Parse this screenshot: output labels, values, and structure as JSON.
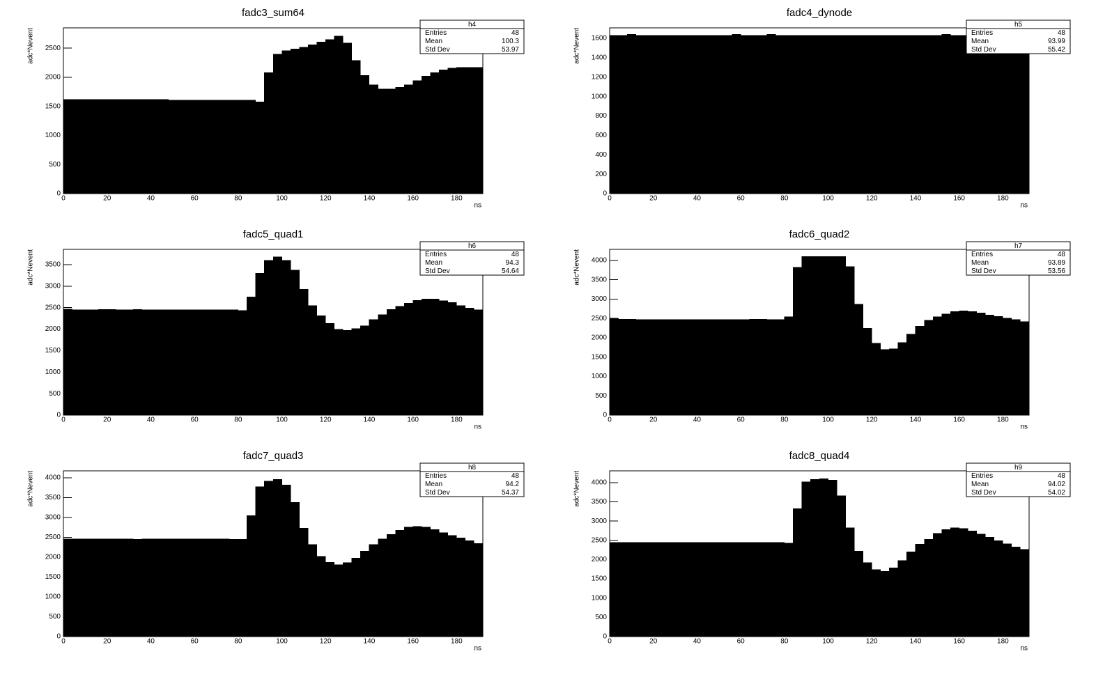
{
  "chart_data": [
    {
      "type": "histogram",
      "title": "fadc3_sum64",
      "xlabel": "ns",
      "ylabel": "adc*Nevent",
      "color": "#000000",
      "stats_title": "h4",
      "stats": [
        {
          "label": "Entries",
          "value": 48
        },
        {
          "label": "Mean",
          "value": 100.3
        },
        {
          "label": "Std Dev",
          "value": 53.97
        }
      ],
      "bins": [
        0,
        4,
        8,
        12,
        16,
        20,
        24,
        28,
        32,
        36,
        40,
        44,
        48,
        52,
        56,
        60,
        64,
        68,
        72,
        76,
        80,
        84,
        88,
        92,
        96,
        100,
        104,
        108,
        112,
        116,
        120,
        124,
        128,
        132,
        136,
        140,
        144,
        148,
        152,
        156,
        160,
        164,
        168,
        172,
        176,
        180,
        184,
        188,
        192
      ],
      "values": [
        1620,
        1620,
        1620,
        1620,
        1620,
        1620,
        1620,
        1620,
        1620,
        1620,
        1620,
        1620,
        1610,
        1610,
        1610,
        1610,
        1610,
        1610,
        1610,
        1610,
        1610,
        1610,
        1580,
        2080,
        2400,
        2460,
        2490,
        2520,
        2560,
        2610,
        2650,
        2710,
        2590,
        2290,
        2030,
        1870,
        1800,
        1800,
        1830,
        1870,
        1940,
        2020,
        2080,
        2130,
        2160,
        2170,
        2170,
        2170
      ],
      "xlim": [
        0,
        192
      ],
      "xticks": [
        0,
        20,
        40,
        60,
        80,
        100,
        120,
        140,
        160,
        180
      ],
      "ylim": [
        0,
        2850
      ],
      "yticks": [
        0,
        500,
        1000,
        1500,
        2000,
        2500
      ]
    },
    {
      "type": "histogram",
      "title": "fadc4_dynode",
      "xlabel": "ns",
      "ylabel": "adc*Nevent",
      "color": "#000000",
      "stats_title": "h5",
      "stats": [
        {
          "label": "Entries",
          "value": 48
        },
        {
          "label": "Mean",
          "value": 93.99
        },
        {
          "label": "Std Dev",
          "value": 55.42
        }
      ],
      "bins": [
        0,
        4,
        8,
        12,
        16,
        20,
        24,
        28,
        32,
        36,
        40,
        44,
        48,
        52,
        56,
        60,
        64,
        68,
        72,
        76,
        80,
        84,
        88,
        92,
        96,
        100,
        104,
        108,
        112,
        116,
        120,
        124,
        128,
        132,
        136,
        140,
        144,
        148,
        152,
        156,
        160,
        164,
        168,
        172,
        176,
        180,
        184,
        188,
        192
      ],
      "values": [
        1630,
        1630,
        1640,
        1630,
        1630,
        1630,
        1630,
        1630,
        1630,
        1630,
        1630,
        1630,
        1630,
        1630,
        1640,
        1630,
        1630,
        1630,
        1640,
        1630,
        1630,
        1630,
        1630,
        1630,
        1630,
        1630,
        1630,
        1630,
        1630,
        1630,
        1630,
        1630,
        1630,
        1630,
        1630,
        1630,
        1630,
        1630,
        1640,
        1630,
        1630,
        1630,
        1630,
        1630,
        1630,
        1630,
        1630,
        1630
      ],
      "xlim": [
        0,
        192
      ],
      "xticks": [
        0,
        20,
        40,
        60,
        80,
        100,
        120,
        140,
        160,
        180
      ],
      "ylim": [
        0,
        1708
      ],
      "yticks": [
        0,
        200,
        400,
        600,
        800,
        1000,
        1200,
        1400,
        1600
      ]
    },
    {
      "type": "histogram",
      "title": "fadc5_quad1",
      "xlabel": "ns",
      "ylabel": "adc*Nevent",
      "color": "#000000",
      "stats_title": "h6",
      "stats": [
        {
          "label": "Entries",
          "value": 48
        },
        {
          "label": "Mean",
          "value": 94.3
        },
        {
          "label": "Std Dev",
          "value": 54.64
        }
      ],
      "bins": [
        0,
        4,
        8,
        12,
        16,
        20,
        24,
        28,
        32,
        36,
        40,
        44,
        48,
        52,
        56,
        60,
        64,
        68,
        72,
        76,
        80,
        84,
        88,
        92,
        96,
        100,
        104,
        108,
        112,
        116,
        120,
        124,
        128,
        132,
        136,
        140,
        144,
        148,
        152,
        156,
        160,
        164,
        168,
        172,
        176,
        180,
        184,
        188,
        192
      ],
      "values": [
        2470,
        2450,
        2450,
        2450,
        2460,
        2460,
        2450,
        2450,
        2460,
        2450,
        2450,
        2450,
        2450,
        2450,
        2450,
        2450,
        2450,
        2450,
        2450,
        2450,
        2430,
        2750,
        3300,
        3600,
        3680,
        3600,
        3370,
        2930,
        2550,
        2310,
        2130,
        2000,
        1970,
        2010,
        2080,
        2220,
        2340,
        2460,
        2530,
        2600,
        2670,
        2700,
        2700,
        2660,
        2620,
        2550,
        2490,
        2450
      ],
      "xlim": [
        0,
        192
      ],
      "xticks": [
        0,
        20,
        40,
        60,
        80,
        100,
        120,
        140,
        160,
        180
      ],
      "ylim": [
        0,
        3855
      ],
      "yticks": [
        0,
        500,
        1000,
        1500,
        2000,
        2500,
        3000,
        3500
      ]
    },
    {
      "type": "histogram",
      "title": "fadc6_quad2",
      "xlabel": "ns",
      "ylabel": "adc*Nevent",
      "color": "#000000",
      "stats_title": "h7",
      "stats": [
        {
          "label": "Entries",
          "value": 48
        },
        {
          "label": "Mean",
          "value": 93.89
        },
        {
          "label": "Std Dev",
          "value": 53.56
        }
      ],
      "bins": [
        0,
        4,
        8,
        12,
        16,
        20,
        24,
        28,
        32,
        36,
        40,
        44,
        48,
        52,
        56,
        60,
        64,
        68,
        72,
        76,
        80,
        84,
        88,
        92,
        96,
        100,
        104,
        108,
        112,
        116,
        120,
        124,
        128,
        132,
        136,
        140,
        144,
        148,
        152,
        156,
        160,
        164,
        168,
        172,
        176,
        180,
        184,
        188,
        192
      ],
      "values": [
        2500,
        2480,
        2480,
        2470,
        2470,
        2470,
        2470,
        2470,
        2470,
        2470,
        2470,
        2470,
        2470,
        2470,
        2470,
        2470,
        2480,
        2480,
        2470,
        2470,
        2540,
        3820,
        4100,
        4100,
        4100,
        4100,
        4100,
        3840,
        2870,
        2250,
        1860,
        1700,
        1720,
        1880,
        2090,
        2300,
        2450,
        2540,
        2620,
        2680,
        2700,
        2680,
        2640,
        2590,
        2550,
        2510,
        2470,
        2420
      ],
      "xlim": [
        0,
        192
      ],
      "xticks": [
        0,
        20,
        40,
        60,
        80,
        100,
        120,
        140,
        160,
        180
      ],
      "ylim": [
        0,
        4287
      ],
      "yticks": [
        0,
        500,
        1000,
        1500,
        2000,
        2500,
        3000,
        3500,
        4000
      ]
    },
    {
      "type": "histogram",
      "title": "fadc7_quad3",
      "xlabel": "ns",
      "ylabel": "adc*Nevent",
      "color": "#000000",
      "stats_title": "h8",
      "stats": [
        {
          "label": "Entries",
          "value": 48
        },
        {
          "label": "Mean",
          "value": 94.2
        },
        {
          "label": "Std Dev",
          "value": 54.37
        }
      ],
      "bins": [
        0,
        4,
        8,
        12,
        16,
        20,
        24,
        28,
        32,
        36,
        40,
        44,
        48,
        52,
        56,
        60,
        64,
        68,
        72,
        76,
        80,
        84,
        88,
        92,
        96,
        100,
        104,
        108,
        112,
        116,
        120,
        124,
        128,
        132,
        136,
        140,
        144,
        148,
        152,
        156,
        160,
        164,
        168,
        172,
        176,
        180,
        184,
        188,
        192
      ],
      "values": [
        2460,
        2460,
        2460,
        2460,
        2460,
        2460,
        2460,
        2460,
        2450,
        2460,
        2460,
        2460,
        2460,
        2460,
        2460,
        2460,
        2460,
        2460,
        2460,
        2450,
        2450,
        3050,
        3780,
        3920,
        3960,
        3820,
        3380,
        2730,
        2320,
        2020,
        1870,
        1810,
        1860,
        1980,
        2150,
        2320,
        2460,
        2570,
        2680,
        2760,
        2780,
        2760,
        2700,
        2620,
        2550,
        2490,
        2420,
        2350
      ],
      "xlim": [
        0,
        192
      ],
      "xticks": [
        0,
        20,
        40,
        60,
        80,
        100,
        120,
        140,
        160,
        180
      ],
      "ylim": [
        0,
        4175
      ],
      "yticks": [
        0,
        500,
        1000,
        1500,
        2000,
        2500,
        3000,
        3500,
        4000
      ]
    },
    {
      "type": "histogram",
      "title": "fadc8_quad4",
      "xlabel": "ns",
      "ylabel": "adc*Nevent",
      "color": "#000000",
      "stats_title": "h9",
      "stats": [
        {
          "label": "Entries",
          "value": 48
        },
        {
          "label": "Mean",
          "value": 94.02
        },
        {
          "label": "Std Dev",
          "value": 54.02
        }
      ],
      "bins": [
        0,
        4,
        8,
        12,
        16,
        20,
        24,
        28,
        32,
        36,
        40,
        44,
        48,
        52,
        56,
        60,
        64,
        68,
        72,
        76,
        80,
        84,
        88,
        92,
        96,
        100,
        104,
        108,
        112,
        116,
        120,
        124,
        128,
        132,
        136,
        140,
        144,
        148,
        152,
        156,
        160,
        164,
        168,
        172,
        176,
        180,
        184,
        188,
        192
      ],
      "values": [
        2450,
        2450,
        2450,
        2450,
        2450,
        2450,
        2450,
        2450,
        2450,
        2450,
        2450,
        2450,
        2450,
        2450,
        2450,
        2450,
        2450,
        2450,
        2450,
        2450,
        2430,
        3320,
        4020,
        4080,
        4100,
        4070,
        3660,
        2830,
        2220,
        1920,
        1740,
        1700,
        1790,
        1980,
        2200,
        2400,
        2530,
        2680,
        2780,
        2830,
        2810,
        2750,
        2660,
        2580,
        2490,
        2410,
        2330,
        2270
      ],
      "xlim": [
        0,
        192
      ],
      "xticks": [
        0,
        20,
        40,
        60,
        80,
        100,
        120,
        140,
        160,
        180
      ],
      "ylim": [
        0,
        4306
      ],
      "yticks": [
        0,
        500,
        1000,
        1500,
        2000,
        2500,
        3000,
        3500,
        4000
      ]
    }
  ]
}
